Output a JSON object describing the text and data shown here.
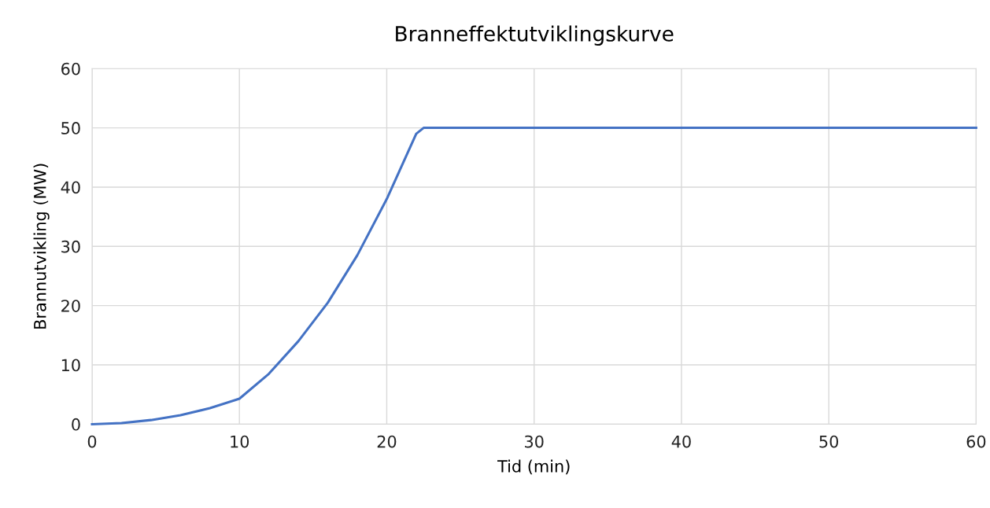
{
  "chart_data": {
    "type": "line",
    "title": "Branneffektutviklingskurve",
    "xlabel": "Tid (min)",
    "ylabel": "Brannutvikling (MW)",
    "x": [
      0,
      2,
      4,
      6,
      8,
      10,
      12,
      14,
      16,
      18,
      20,
      21,
      22,
      22.5,
      23,
      60
    ],
    "series": [
      {
        "color": "#4472c4",
        "values": [
          0,
          0.2,
          0.7,
          1.5,
          2.7,
          4.3,
          8.5,
          14,
          20.5,
          28.5,
          38,
          43.5,
          49,
          50,
          50,
          50
        ]
      }
    ],
    "xlim": [
      0,
      60
    ],
    "xticks": [
      0,
      10,
      20,
      30,
      40,
      50,
      60
    ],
    "ylim": [
      0,
      60
    ],
    "yticks": [
      0,
      10,
      20,
      30,
      40,
      50,
      60
    ],
    "grid": true,
    "marker": "none",
    "line_style": "solid",
    "legend": false
  }
}
